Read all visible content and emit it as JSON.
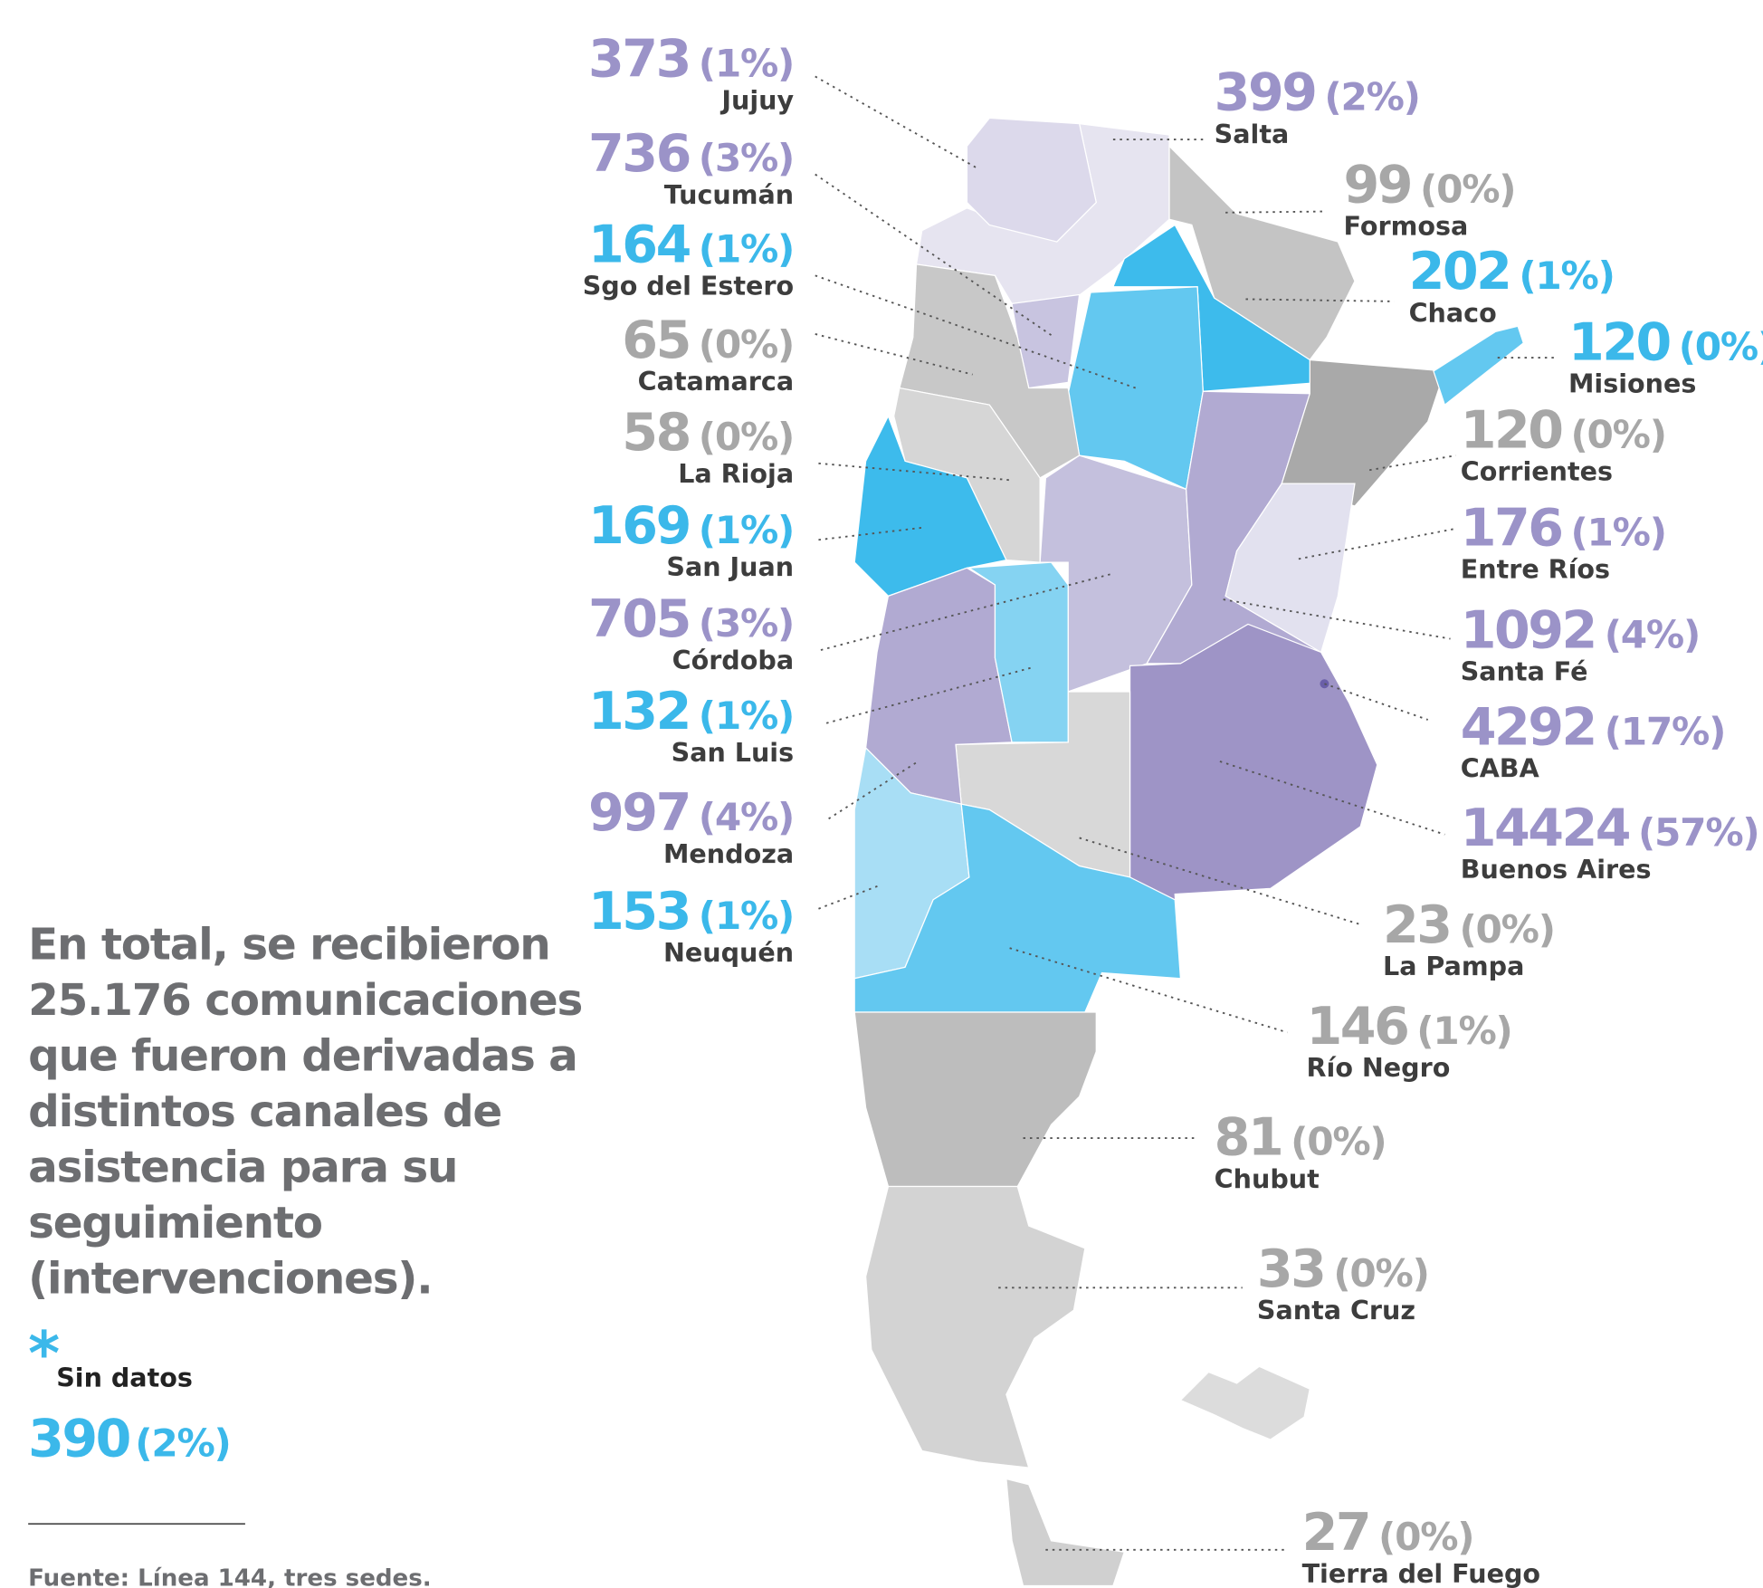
{
  "regions": [
    {
      "name": "Jujuy",
      "value": 373,
      "percent": "(1%)",
      "color": "#9b93c8"
    },
    {
      "name": "Tucumán",
      "value": 736,
      "percent": "(3%)",
      "color": "#9b93c8"
    },
    {
      "name": "Sgo del Estero",
      "value": 164,
      "percent": "(1%)",
      "color": "#3bb8ea"
    },
    {
      "name": "Catamarca",
      "value": 65,
      "percent": "(0%)",
      "color": "#a7a7a7"
    },
    {
      "name": "La Rioja",
      "value": 58,
      "percent": "(0%)",
      "color": "#a7a7a7"
    },
    {
      "name": "San Juan",
      "value": 169,
      "percent": "(1%)",
      "color": "#3bb8ea"
    },
    {
      "name": "Córdoba",
      "value": 705,
      "percent": "(3%)",
      "color": "#9b93c8"
    },
    {
      "name": "San Luis",
      "value": 132,
      "percent": "(1%)",
      "color": "#3bb8ea"
    },
    {
      "name": "Mendoza",
      "value": 997,
      "percent": "(4%)",
      "color": "#9b93c8"
    },
    {
      "name": "Neuquén",
      "value": 153,
      "percent": "(1%)",
      "color": "#3bb8ea"
    },
    {
      "name": "Salta",
      "value": 399,
      "percent": "(2%)",
      "color": "#9b93c8"
    },
    {
      "name": "Formosa",
      "value": 99,
      "percent": "(0%)",
      "color": "#a7a7a7"
    },
    {
      "name": "Chaco",
      "value": 202,
      "percent": "(1%)",
      "color": "#3bb8ea"
    },
    {
      "name": "Misiones",
      "value": 120,
      "percent": "(0%)",
      "color": "#3bb8ea"
    },
    {
      "name": "Corrientes",
      "value": 120,
      "percent": "(0%)",
      "color": "#a7a7a7"
    },
    {
      "name": "Entre Ríos",
      "value": 176,
      "percent": "(1%)",
      "color": "#9b93c8"
    },
    {
      "name": "Santa Fé",
      "value": 1092,
      "percent": "(4%)",
      "color": "#9b93c8"
    },
    {
      "name": "CABA",
      "value": 4292,
      "percent": "(17%)",
      "color": "#9b93c8"
    },
    {
      "name": "Buenos Aires",
      "value": 14424,
      "percent": "(57%)",
      "color": "#9b93c8"
    },
    {
      "name": "La Pampa",
      "value": 23,
      "percent": "(0%)",
      "color": "#a7a7a7"
    },
    {
      "name": "Río Negro",
      "value": 146,
      "percent": "(1%)",
      "color": "#a7a7a7"
    },
    {
      "name": "Chubut",
      "value": 81,
      "percent": "(0%)",
      "color": "#a7a7a7"
    },
    {
      "name": "Santa Cruz",
      "value": 33,
      "percent": "(0%)",
      "color": "#a7a7a7"
    },
    {
      "name": "Tierra del Fuego",
      "value": 27,
      "percent": "(0%)",
      "color": "#a7a7a7"
    }
  ],
  "summary": [
    "En total, se recibieron",
    "25.176 comunicaciones",
    "que fueron derivadas a",
    "distintos canales de",
    "asistencia para su",
    "seguimiento",
    "(intervenciones)."
  ],
  "no_data": {
    "marker": "*",
    "label": "Sin datos",
    "value": 390,
    "percent": "(2%)",
    "color": "#3bb8ea"
  },
  "source": "Fuente: Línea 144, tres sedes."
}
